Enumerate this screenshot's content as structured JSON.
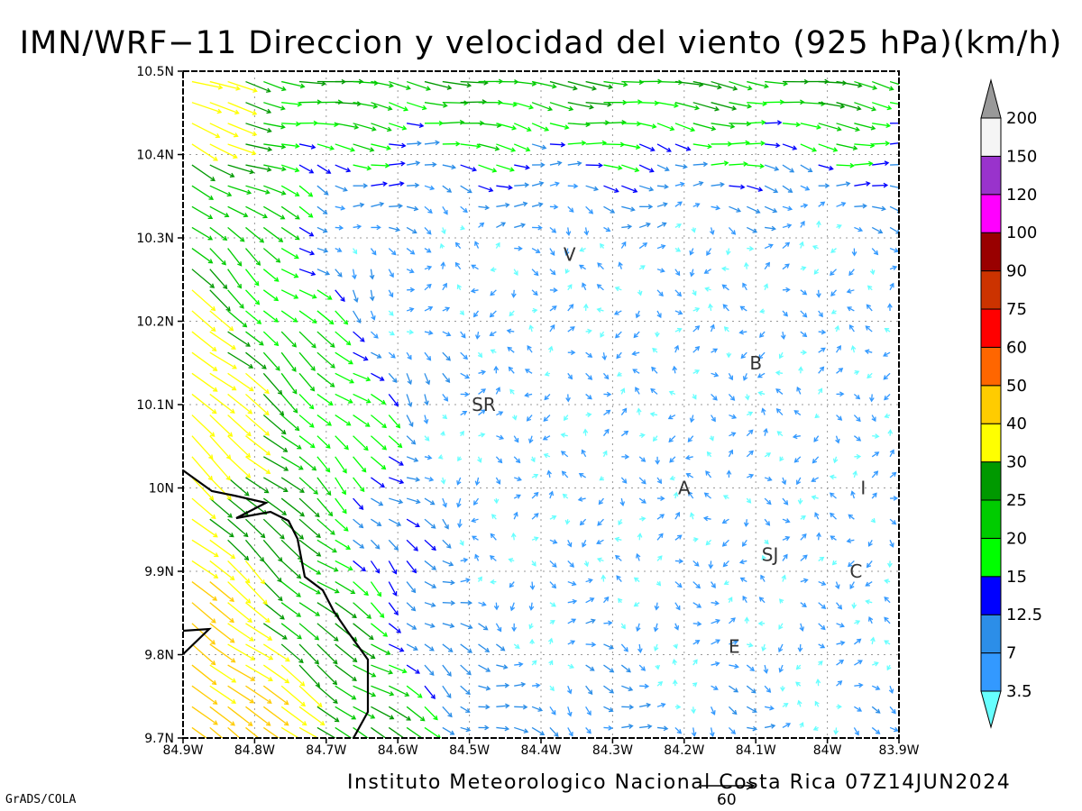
{
  "title": "IMN/WRF−11 Direccion y velocidad del viento (925 hPa)(km/h)",
  "credit": "Instituto Meteorologico Nacional Costa Rica 07Z14JUN2024",
  "software": "GrADS/COLA",
  "map": {
    "lon_range": [
      -84.9,
      -83.9
    ],
    "lat_range": [
      9.7,
      10.5
    ],
    "x_ticks": [
      "84.9W",
      "84.8W",
      "84.7W",
      "84.6W",
      "84.5W",
      "84.4W",
      "84.3W",
      "84.2W",
      "84.1W",
      "84W",
      "83.9W"
    ],
    "y_ticks": [
      "9.7N",
      "9.8N",
      "9.9N",
      "10N",
      "10.1N",
      "10.2N",
      "10.3N",
      "10.4N",
      "10.5N"
    ],
    "grid": "dotted",
    "places": [
      {
        "label": "V",
        "lon": -84.36,
        "lat": 10.28
      },
      {
        "label": "SR",
        "lon": -84.48,
        "lat": 10.1
      },
      {
        "label": "B",
        "lon": -84.1,
        "lat": 10.15
      },
      {
        "label": "A",
        "lon": -84.2,
        "lat": 10.0
      },
      {
        "label": "I",
        "lon": -83.95,
        "lat": 10.0
      },
      {
        "label": "SJ",
        "lon": -84.08,
        "lat": 9.92
      },
      {
        "label": "C",
        "lon": -83.96,
        "lat": 9.9
      },
      {
        "label": "E",
        "lon": -84.13,
        "lat": 9.81
      }
    ],
    "reference_vector": {
      "label": "60",
      "units": "km/h"
    }
  },
  "legend": {
    "boundaries": [
      "3.5",
      "7",
      "12.5",
      "15",
      "20",
      "25",
      "30",
      "40",
      "50",
      "60",
      "75",
      "90",
      "100",
      "120",
      "150",
      "200"
    ],
    "colors": [
      "#66ffff",
      "#3399ff",
      "#2c8ee8",
      "#0000ff",
      "#00ff00",
      "#00cc00",
      "#009900",
      "#ffff00",
      "#ffcc00",
      "#ff6600",
      "#ff0000",
      "#cc3300",
      "#990000",
      "#ff00ff",
      "#9933cc",
      "#f5f5f5",
      "#999999"
    ]
  }
}
